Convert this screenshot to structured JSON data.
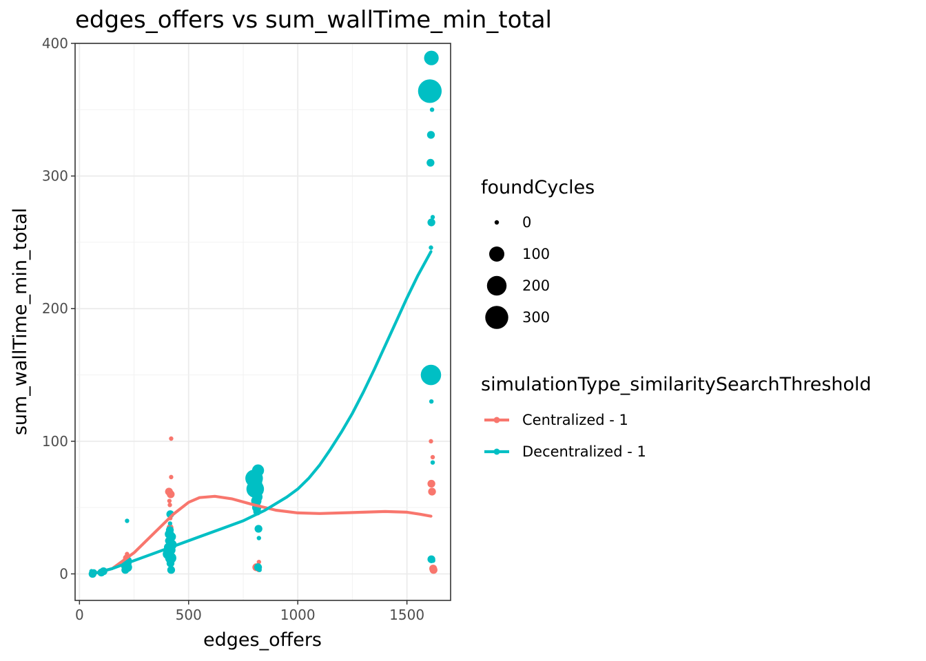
{
  "chart_data": {
    "type": "scatter",
    "title": "edges_offers  vs  sum_wallTime_min_total",
    "xlabel": "edges_offers",
    "ylabel": "sum_wallTime_min_total",
    "xlim": [
      -20,
      1700
    ],
    "ylim": [
      -20,
      400
    ],
    "x_ticks": [
      0,
      500,
      1000,
      1500
    ],
    "x_tick_labels": [
      "0",
      "500",
      "1000",
      "1500"
    ],
    "y_ticks": [
      0,
      100,
      200,
      300,
      400
    ],
    "y_tick_labels": [
      "0",
      "100",
      "200",
      "300",
      "400"
    ],
    "grid": true,
    "size_legend": {
      "title": "foundCycles",
      "entries": [
        {
          "label": "0",
          "value": 0
        },
        {
          "label": "100",
          "value": 100
        },
        {
          "label": "200",
          "value": 200
        },
        {
          "label": "300",
          "value": 300
        }
      ]
    },
    "color_legend": {
      "title": "simulationType_similaritySearchThreshold",
      "placement": "right"
    },
    "series": [
      {
        "name": "Centralized - 1",
        "color": "#F8766D",
        "points": [
          [
            55,
            1,
            0
          ],
          [
            60,
            0,
            0
          ],
          [
            100,
            2,
            0
          ],
          [
            105,
            1,
            0
          ],
          [
            110,
            2,
            0
          ],
          [
            210,
            8,
            5
          ],
          [
            215,
            12,
            5
          ],
          [
            218,
            15,
            0
          ],
          [
            220,
            10,
            10
          ],
          [
            222,
            6,
            0
          ],
          [
            410,
            62,
            10
          ],
          [
            412,
            55,
            0
          ],
          [
            414,
            52,
            0
          ],
          [
            415,
            35,
            5
          ],
          [
            416,
            42,
            0
          ],
          [
            418,
            60,
            10
          ],
          [
            420,
            73,
            0
          ],
          [
            420,
            102,
            0
          ],
          [
            420,
            3,
            0
          ],
          [
            419,
            25,
            5
          ],
          [
            810,
            5,
            10
          ],
          [
            815,
            60,
            10
          ],
          [
            818,
            58,
            0
          ],
          [
            820,
            3,
            0
          ],
          [
            822,
            9,
            0
          ],
          [
            1610,
            100,
            0
          ],
          [
            1612,
            68,
            10
          ],
          [
            1615,
            62,
            10
          ],
          [
            1618,
            88,
            0
          ],
          [
            1620,
            4,
            10
          ],
          [
            1622,
            3,
            10
          ],
          [
            1614,
            62,
            0
          ]
        ],
        "smooth": [
          [
            60,
            0
          ],
          [
            150,
            4
          ],
          [
            250,
            16
          ],
          [
            350,
            32
          ],
          [
            430,
            45
          ],
          [
            500,
            54
          ],
          [
            550,
            57.5
          ],
          [
            620,
            58.5
          ],
          [
            700,
            56.5
          ],
          [
            800,
            52
          ],
          [
            900,
            48
          ],
          [
            1000,
            46
          ],
          [
            1100,
            45.5
          ],
          [
            1200,
            46
          ],
          [
            1300,
            46.5
          ],
          [
            1400,
            47
          ],
          [
            1500,
            46.5
          ],
          [
            1560,
            45
          ],
          [
            1610,
            43.5
          ]
        ]
      },
      {
        "name": "Decentralized - 1",
        "color": "#00BFC4",
        "points": [
          [
            55,
            2,
            0
          ],
          [
            60,
            0,
            10
          ],
          [
            65,
            1,
            5
          ],
          [
            100,
            1,
            10
          ],
          [
            105,
            0,
            0
          ],
          [
            110,
            2,
            10
          ],
          [
            115,
            1,
            0
          ],
          [
            210,
            3,
            10
          ],
          [
            212,
            6,
            20
          ],
          [
            215,
            8,
            30
          ],
          [
            218,
            40,
            0
          ],
          [
            220,
            5,
            20
          ],
          [
            222,
            10,
            10
          ],
          [
            225,
            4,
            0
          ],
          [
            405,
            15,
            30
          ],
          [
            408,
            20,
            20
          ],
          [
            410,
            25,
            10
          ],
          [
            412,
            30,
            20
          ],
          [
            414,
            33,
            10
          ],
          [
            415,
            38,
            0
          ],
          [
            416,
            45,
            10
          ],
          [
            418,
            12,
            40
          ],
          [
            420,
            3,
            10
          ],
          [
            421,
            28,
            20
          ],
          [
            422,
            22,
            30
          ],
          [
            419,
            18,
            20
          ],
          [
            417,
            8,
            10
          ],
          [
            800,
            72,
            150
          ],
          [
            805,
            64,
            150
          ],
          [
            808,
            68,
            60
          ],
          [
            810,
            55,
            30
          ],
          [
            812,
            50,
            20
          ],
          [
            815,
            58,
            30
          ],
          [
            818,
            78,
            50
          ],
          [
            820,
            34,
            10
          ],
          [
            822,
            27,
            0
          ],
          [
            818,
            5,
            10
          ],
          [
            825,
            3,
            0
          ],
          [
            814,
            47,
            10
          ],
          [
            1605,
            364,
            320
          ],
          [
            1612,
            389,
            90
          ],
          [
            1615,
            350,
            0
          ],
          [
            1610,
            331,
            10
          ],
          [
            1608,
            310,
            10
          ],
          [
            1612,
            265,
            10
          ],
          [
            1618,
            269,
            0
          ],
          [
            1610,
            246,
            0
          ],
          [
            1610,
            150,
            220
          ],
          [
            1612,
            130,
            0
          ],
          [
            1618,
            84,
            0
          ],
          [
            1612,
            11,
            10
          ],
          [
            1620,
            10,
            0
          ]
        ],
        "smooth": [
          [
            60,
            0
          ],
          [
            150,
            4
          ],
          [
            250,
            10
          ],
          [
            350,
            16
          ],
          [
            450,
            22
          ],
          [
            550,
            28
          ],
          [
            650,
            34
          ],
          [
            750,
            40
          ],
          [
            850,
            48
          ],
          [
            950,
            58
          ],
          [
            1000,
            64
          ],
          [
            1050,
            72
          ],
          [
            1100,
            82
          ],
          [
            1150,
            94
          ],
          [
            1200,
            107
          ],
          [
            1250,
            121
          ],
          [
            1300,
            137
          ],
          [
            1350,
            154
          ],
          [
            1400,
            172
          ],
          [
            1450,
            190
          ],
          [
            1500,
            208
          ],
          [
            1550,
            225
          ],
          [
            1610,
            243
          ]
        ]
      }
    ]
  }
}
